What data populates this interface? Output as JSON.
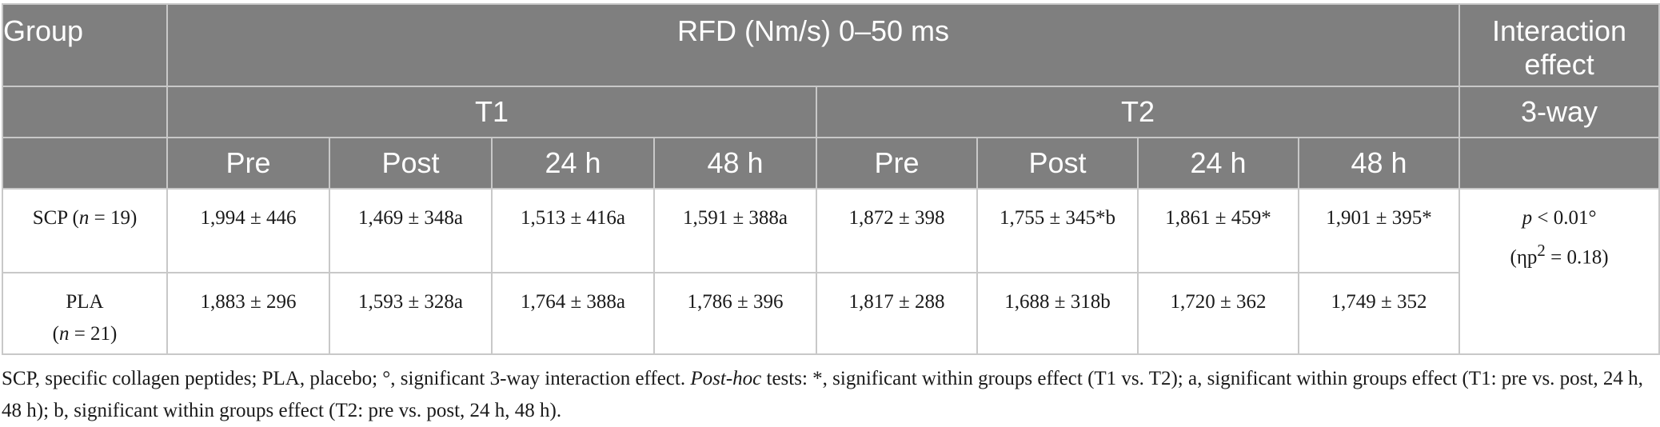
{
  "table": {
    "header": {
      "group": "Group",
      "rfd": "RFD (Nm/s) 0–50 ms",
      "interaction_line1": "Interaction",
      "interaction_line2": "effect",
      "t1": "T1",
      "t2": "T2",
      "three_way": "3-way",
      "timepoints": [
        "Pre",
        "Post",
        "24 h",
        "48 h",
        "Pre",
        "Post",
        "24 h",
        "48 h"
      ]
    },
    "rows": [
      {
        "group_name": "SCP (",
        "group_n": "n",
        "group_count": " = 19)",
        "cells": [
          "1,994 ± 446",
          "1,469 ± 348a",
          "1,513 ± 416a",
          "1,591 ± 388a",
          "1,872 ± 398",
          "1,755 ± 345*b",
          "1,861 ± 459*",
          "1,901 ± 395*"
        ]
      },
      {
        "group_name": "PLA",
        "group_n": "n",
        "group_count": " = 21)",
        "group_open": "(",
        "cells": [
          "1,883 ± 296",
          "1,593 ± 328a",
          "1,764 ± 388a",
          "1,786 ± 396",
          "1,817 ± 288",
          "1,688 ± 318b",
          "1,720 ± 362",
          "1,749 ± 352"
        ]
      }
    ],
    "interaction": {
      "p": "p",
      "p_value": " < 0.01°",
      "eta_open": "(ηp",
      "eta_sup": "2",
      "eta_value": " = 0.18)"
    }
  },
  "footnote": {
    "part1": "SCP, specific collagen peptides; PLA, placebo; °, significant 3-way interaction effect. ",
    "posthoc": "Post-hoc",
    "part2": " tests: *, significant within groups effect (T1 vs. T2); a, significant within groups effect (T1: pre vs. post, 24 h, 48 h); b, significant within groups effect (T2: pre vs. post, 24 h, 48 h)."
  }
}
